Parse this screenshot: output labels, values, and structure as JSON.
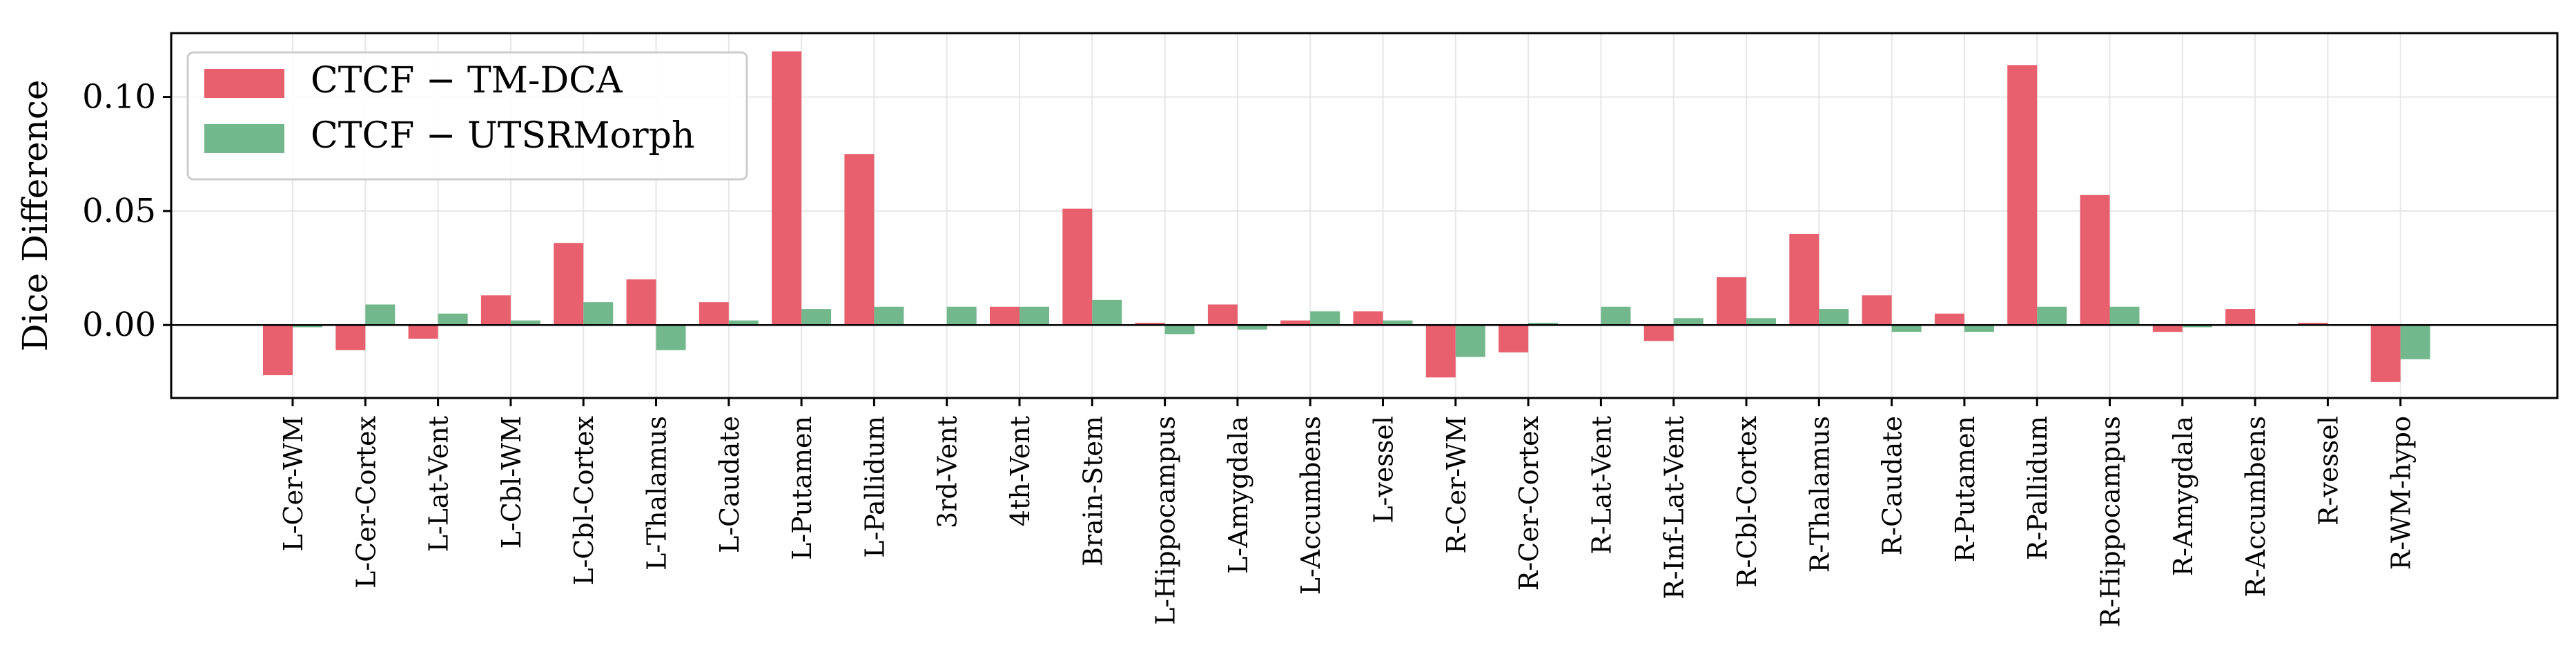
{
  "chart_data": {
    "type": "bar",
    "title": "",
    "xlabel": "",
    "ylabel": "Dice Difference",
    "ylim": [
      -0.032,
      0.128
    ],
    "yticks": [
      0.0,
      0.05,
      0.1
    ],
    "ytick_labels": [
      "0.00",
      "0.05",
      "0.10"
    ],
    "grid": true,
    "legend_position": "top-left",
    "categories": [
      "L-Cer-WM",
      "L-Cer-Cortex",
      "L-Lat-Vent",
      "L-Cbl-WM",
      "L-Cbl-Cortex",
      "L-Thalamus",
      "L-Caudate",
      "L-Putamen",
      "L-Pallidum",
      "3rd-Vent",
      "4th-Vent",
      "Brain-Stem",
      "L-Hippocampus",
      "L-Amygdala",
      "L-Accumbens",
      "L-vessel",
      "R-Cer-WM",
      "R-Cer-Cortex",
      "R-Lat-Vent",
      "R-Inf-Lat-Vent",
      "R-Cbl-Cortex",
      "R-Thalamus",
      "R-Caudate",
      "R-Putamen",
      "R-Pallidum",
      "R-Hippocampus",
      "R-Amygdala",
      "R-Accumbens",
      "R-vessel",
      "R-WM-hypo"
    ],
    "series": [
      {
        "name": "CTCF − TM-DCA",
        "color": "#e8606e",
        "values": [
          -0.022,
          -0.011,
          -0.006,
          0.013,
          0.036,
          0.02,
          0.01,
          0.12,
          0.075,
          0.0,
          0.008,
          0.051,
          0.001,
          0.009,
          0.002,
          0.006,
          -0.023,
          -0.012,
          0.0,
          -0.007,
          0.021,
          0.04,
          0.013,
          0.005,
          0.114,
          0.057,
          -0.003,
          0.007,
          0.001,
          -0.025
        ]
      },
      {
        "name": "CTCF − UTSRMorph",
        "color": "#72b88c",
        "values": [
          -0.001,
          0.009,
          0.005,
          0.002,
          0.01,
          -0.011,
          0.002,
          0.007,
          0.008,
          0.008,
          0.008,
          0.011,
          -0.004,
          -0.002,
          0.006,
          0.002,
          -0.014,
          0.001,
          0.008,
          0.003,
          0.003,
          0.007,
          -0.003,
          -0.003,
          0.008,
          0.008,
          -0.001,
          0.0,
          0.0,
          -0.015
        ]
      }
    ]
  }
}
